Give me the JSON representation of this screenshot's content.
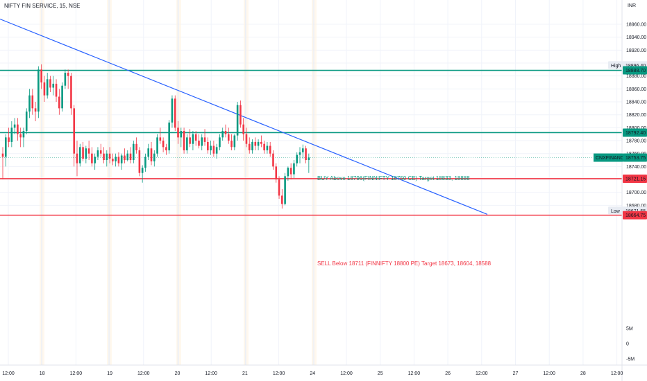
{
  "header": {
    "title": "NIFTY FIN SERVICE, 15, NSE",
    "currency": "INR"
  },
  "chart_data": {
    "type": "candlestick",
    "y_ticks": [
      "18960.00",
      "18940.00",
      "18920.00",
      "18900.00",
      "18880.00",
      "18860.00",
      "18840.00",
      "18820.00",
      "18800.00",
      "18780.00",
      "18760.00",
      "18740.00",
      "18720.00",
      "18700.00",
      "18680.00"
    ],
    "volume_ticks": [
      "5M",
      "0",
      "-5M"
    ],
    "x_ticks": [
      "12:00",
      "18",
      "12:00",
      "19",
      "12:00",
      "20",
      "12:00",
      "21",
      "12:00",
      "24",
      "12:00",
      "25",
      "12:00",
      "26",
      "12:00",
      "27",
      "12:00",
      "28",
      "12:00"
    ],
    "levels": {
      "high": {
        "label": "High",
        "value": "18896.40"
      },
      "low": {
        "label": "Low",
        "value": "18671.55"
      },
      "resistance": {
        "value": "18888.70",
        "color": "#089981"
      },
      "buy_line": {
        "value": "18792.40",
        "color": "#089981"
      },
      "sell_line": {
        "value": "18721.15",
        "color": "#f23645"
      },
      "support": {
        "value": "18664.75",
        "color": "#f23645"
      },
      "last": {
        "symbol": "CNXFINANCE",
        "value": "18753.75",
        "color": "#089981"
      }
    },
    "annotations": {
      "buy": "BUY Above 18796(FINNIFTY 18750 CE) Target 18833, 18888",
      "sell": "SELL Below 18711  (FINNIFTY 18800 PE) Target  18673, 18604, 18588"
    },
    "trendline": {
      "from": {
        "price": 18968
      },
      "to": {
        "price": 18666
      },
      "color": "#2962ff"
    },
    "colors": {
      "up": "#089981",
      "down": "#f23645",
      "grid": "#f0f3fa"
    },
    "candles": [
      [
        18760,
        18770,
        18720,
        18755
      ],
      [
        18755,
        18790,
        18740,
        18785
      ],
      [
        18785,
        18800,
        18770,
        18778
      ],
      [
        18778,
        18810,
        18770,
        18800
      ],
      [
        18800,
        18815,
        18790,
        18805
      ],
      [
        18805,
        18815,
        18780,
        18790
      ],
      [
        18790,
        18800,
        18770,
        18785
      ],
      [
        18785,
        18800,
        18770,
        18795
      ],
      [
        18795,
        18830,
        18790,
        18825
      ],
      [
        18825,
        18860,
        18815,
        18850
      ],
      [
        18850,
        18860,
        18820,
        18830
      ],
      [
        18830,
        18840,
        18810,
        18825
      ],
      [
        18825,
        18895,
        18815,
        18890
      ],
      [
        18890,
        18898,
        18860,
        18870
      ],
      [
        18870,
        18880,
        18840,
        18850
      ],
      [
        18850,
        18885,
        18845,
        18875
      ],
      [
        18875,
        18880,
        18855,
        18862
      ],
      [
        18862,
        18880,
        18850,
        18868
      ],
      [
        18868,
        18875,
        18840,
        18848
      ],
      [
        18848,
        18860,
        18820,
        18830
      ],
      [
        18830,
        18870,
        18825,
        18865
      ],
      [
        18865,
        18890,
        18860,
        18885
      ],
      [
        18885,
        18890,
        18860,
        18880
      ],
      [
        18880,
        18885,
        18820,
        18830
      ],
      [
        18830,
        18835,
        18740,
        18760
      ],
      [
        18760,
        18780,
        18725,
        18745
      ],
      [
        18745,
        18775,
        18740,
        18770
      ],
      [
        18770,
        18778,
        18748,
        18752
      ],
      [
        18752,
        18772,
        18745,
        18768
      ],
      [
        18768,
        18780,
        18750,
        18760
      ],
      [
        18760,
        18770,
        18740,
        18745
      ],
      [
        18745,
        18760,
        18735,
        18755
      ],
      [
        18755,
        18770,
        18750,
        18765
      ],
      [
        18765,
        18775,
        18755,
        18760
      ],
      [
        18760,
        18770,
        18745,
        18750
      ],
      [
        18750,
        18765,
        18740,
        18760
      ],
      [
        18760,
        18770,
        18745,
        18752
      ],
      [
        18752,
        18760,
        18742,
        18748
      ],
      [
        18748,
        18760,
        18740,
        18755
      ],
      [
        18755,
        18762,
        18740,
        18745
      ],
      [
        18745,
        18760,
        18735,
        18757
      ],
      [
        18757,
        18768,
        18745,
        18750
      ],
      [
        18750,
        18765,
        18748,
        18760
      ],
      [
        18760,
        18770,
        18745,
        18750
      ],
      [
        18750,
        18780,
        18745,
        18775
      ],
      [
        18775,
        18785,
        18760,
        18765
      ],
      [
        18765,
        18770,
        18725,
        18730
      ],
      [
        18730,
        18742,
        18715,
        18738
      ],
      [
        18738,
        18760,
        18732,
        18755
      ],
      [
        18755,
        18775,
        18750,
        18768
      ],
      [
        18768,
        18778,
        18742,
        18748
      ],
      [
        18748,
        18765,
        18740,
        18760
      ],
      [
        18760,
        18790,
        18755,
        18785
      ],
      [
        18785,
        18800,
        18775,
        18780
      ],
      [
        18780,
        18785,
        18762,
        18770
      ],
      [
        18770,
        18775,
        18758,
        18765
      ],
      [
        18765,
        18812,
        18760,
        18808
      ],
      [
        18808,
        18850,
        18800,
        18845
      ],
      [
        18845,
        18850,
        18795,
        18800
      ],
      [
        18800,
        18810,
        18775,
        18785
      ],
      [
        18785,
        18800,
        18770,
        18795
      ],
      [
        18795,
        18800,
        18760,
        18765
      ],
      [
        18765,
        18790,
        18760,
        18785
      ],
      [
        18785,
        18798,
        18770,
        18775
      ],
      [
        18775,
        18795,
        18765,
        18790
      ],
      [
        18790,
        18795,
        18772,
        18780
      ],
      [
        18780,
        18790,
        18768,
        18772
      ],
      [
        18772,
        18790,
        18765,
        18785
      ],
      [
        18785,
        18798,
        18772,
        18778
      ],
      [
        18778,
        18785,
        18760,
        18765
      ],
      [
        18765,
        18780,
        18758,
        18772
      ],
      [
        18772,
        18780,
        18755,
        18760
      ],
      [
        18760,
        18775,
        18752,
        18770
      ],
      [
        18770,
        18790,
        18765,
        18785
      ],
      [
        18785,
        18800,
        18780,
        18795
      ],
      [
        18795,
        18805,
        18785,
        18790
      ],
      [
        18790,
        18800,
        18775,
        18780
      ],
      [
        18780,
        18790,
        18765,
        18770
      ],
      [
        18770,
        18790,
        18765,
        18788
      ],
      [
        18788,
        18840,
        18780,
        18835
      ],
      [
        18835,
        18842,
        18800,
        18805
      ],
      [
        18805,
        18815,
        18780,
        18790
      ],
      [
        18790,
        18800,
        18770,
        18775
      ],
      [
        18775,
        18785,
        18760,
        18765
      ],
      [
        18765,
        18782,
        18760,
        18778
      ],
      [
        18778,
        18785,
        18765,
        18772
      ],
      [
        18772,
        18782,
        18765,
        18778
      ],
      [
        18778,
        18788,
        18770,
        18775
      ],
      [
        18775,
        18780,
        18760,
        18765
      ],
      [
        18765,
        18778,
        18760,
        18772
      ],
      [
        18772,
        18778,
        18755,
        18760
      ],
      [
        18760,
        18765,
        18735,
        18740
      ],
      [
        18740,
        18745,
        18715,
        18720
      ],
      [
        18720,
        18725,
        18690,
        18695
      ],
      [
        18695,
        18705,
        18675,
        18682
      ],
      [
        18682,
        18730,
        18680,
        18725
      ],
      [
        18725,
        18740,
        18718,
        18738
      ],
      [
        18738,
        18745,
        18720,
        18728
      ],
      [
        18728,
        18750,
        18722,
        18745
      ],
      [
        18745,
        18762,
        18740,
        18758
      ],
      [
        18758,
        18770,
        18745,
        18762
      ],
      [
        18762,
        18774,
        18752,
        18768
      ],
      [
        18768,
        18772,
        18745,
        18750
      ],
      [
        18750,
        18760,
        18730,
        18754
      ]
    ]
  }
}
